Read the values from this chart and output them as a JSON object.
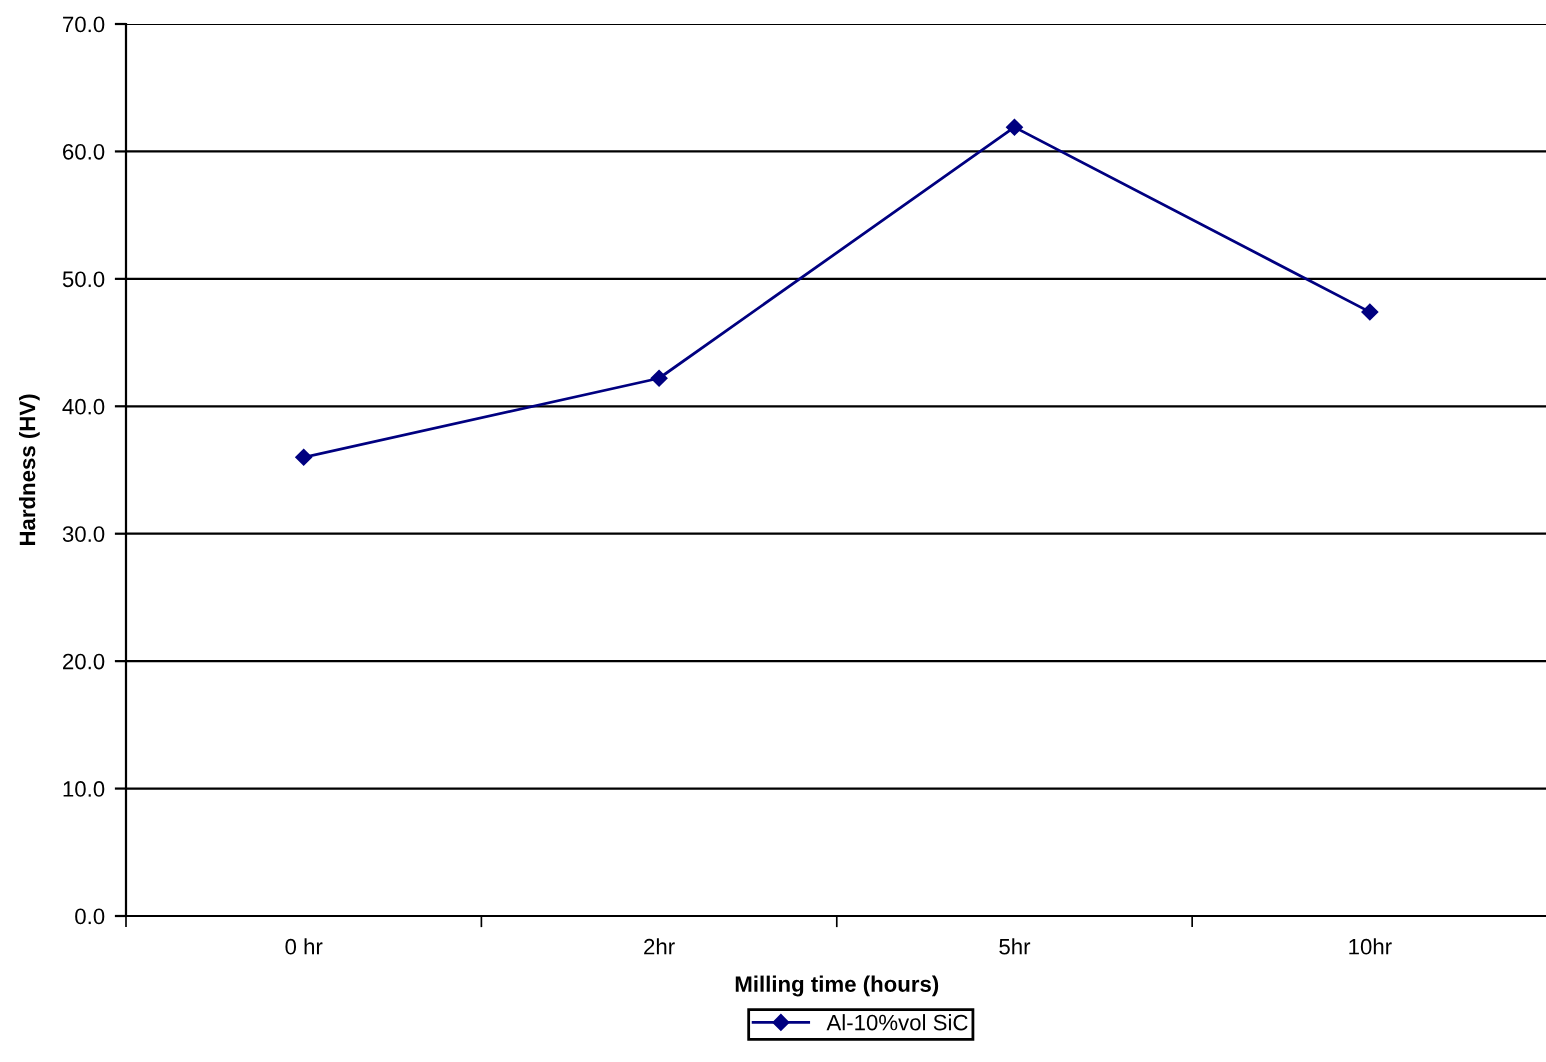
{
  "chart_data": {
    "type": "line",
    "xlabel": "Milling time (hours)",
    "ylabel": "Hardness (HV)",
    "categories": [
      "0 hr",
      "2hr",
      "5hr",
      "10hr"
    ],
    "series": [
      {
        "name": "Al-10%vol SiC",
        "color": "#000080",
        "values": [
          36.0,
          42.2,
          61.9,
          47.4
        ]
      }
    ],
    "ylim": [
      0,
      70
    ],
    "yticks": [
      {
        "value": 0,
        "label": "0.0"
      },
      {
        "value": 10,
        "label": "10.0"
      },
      {
        "value": 20,
        "label": "20.0"
      },
      {
        "value": 30,
        "label": "30.0"
      },
      {
        "value": 40,
        "label": "40.0"
      },
      {
        "value": 50,
        "label": "50.0"
      },
      {
        "value": 60,
        "label": "60.0"
      },
      {
        "value": 70,
        "label": "70.0"
      }
    ],
    "grid": "y",
    "legend": "bottom",
    "marker": "diamond",
    "line_style": "solid"
  }
}
